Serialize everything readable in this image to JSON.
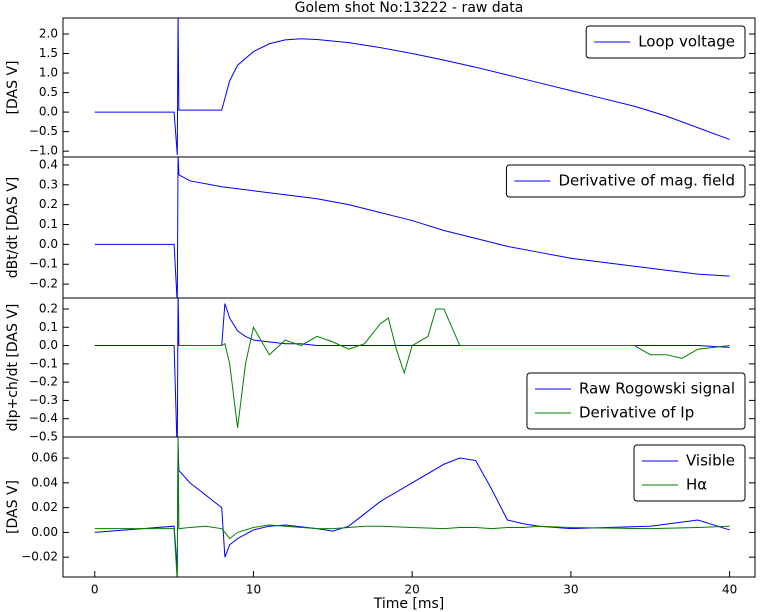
{
  "chart_data": [
    {
      "type": "line",
      "title": "Golem shot No:13222 - raw data",
      "ylabel": "[DAS V]",
      "legend": "upper right",
      "xlim": [
        -2,
        41.6
      ],
      "ylim": [
        -1.15,
        2.41
      ],
      "yticks": [
        {
          "value": 2,
          "label": "2.0"
        },
        {
          "value": 1.5,
          "label": "1.5"
        },
        {
          "value": 1,
          "label": "1.0"
        },
        {
          "value": 0.5,
          "label": "0.5"
        },
        {
          "value": 0,
          "label": "0.0"
        },
        {
          "value": -0.5,
          "label": "−0.5"
        },
        {
          "value": -1,
          "label": "−1.0"
        }
      ],
      "x": [
        0,
        5,
        5.2,
        5.25,
        5.3,
        8,
        8.5,
        9,
        10,
        11,
        12,
        13,
        14,
        16,
        18,
        20,
        22,
        24,
        26,
        28,
        30,
        32,
        34,
        36,
        38,
        40
      ],
      "series": [
        {
          "name": "Loop voltage",
          "color": "#0000ff",
          "values": [
            0,
            0,
            -1.1,
            2.5,
            0.05,
            0.05,
            0.8,
            1.2,
            1.55,
            1.75,
            1.85,
            1.88,
            1.86,
            1.78,
            1.65,
            1.5,
            1.33,
            1.15,
            0.95,
            0.75,
            0.55,
            0.35,
            0.15,
            -0.1,
            -0.4,
            -0.7
          ]
        }
      ]
    },
    {
      "type": "line",
      "ylabel": "dBt/dt [DAS V]",
      "legend": "upper right",
      "xlim": [
        -2,
        41.6
      ],
      "ylim": [
        -0.27,
        0.44
      ],
      "yticks": [
        {
          "value": 0.4,
          "label": "0.4"
        },
        {
          "value": 0.3,
          "label": "0.3"
        },
        {
          "value": 0.2,
          "label": "0.2"
        },
        {
          "value": 0.1,
          "label": "0.1"
        },
        {
          "value": 0,
          "label": "0.0"
        },
        {
          "value": -0.1,
          "label": "−0.1"
        },
        {
          "value": -0.2,
          "label": "−0.2"
        }
      ],
      "x": [
        0,
        5,
        5.2,
        5.25,
        5.3,
        6,
        8,
        10,
        12,
        14,
        16,
        18,
        20,
        22,
        24,
        26,
        28,
        30,
        32,
        34,
        36,
        38,
        40
      ],
      "series": [
        {
          "name": "Derivative of mag. field",
          "color": "#0000ff",
          "values": [
            0,
            0,
            -0.3,
            0.45,
            0.35,
            0.32,
            0.29,
            0.27,
            0.25,
            0.23,
            0.2,
            0.16,
            0.12,
            0.07,
            0.03,
            -0.01,
            -0.04,
            -0.07,
            -0.09,
            -0.11,
            -0.13,
            -0.15,
            -0.16
          ]
        }
      ]
    },
    {
      "type": "line",
      "ylabel": "dIp+ch/dt [DAS V]",
      "legend": "lower right",
      "xlim": [
        -2,
        41.6
      ],
      "ylim": [
        -0.5,
        0.26
      ],
      "yticks": [
        {
          "value": 0.2,
          "label": "0.2"
        },
        {
          "value": 0.1,
          "label": "0.1"
        },
        {
          "value": 0,
          "label": "0.0"
        },
        {
          "value": -0.1,
          "label": "−0.1"
        },
        {
          "value": -0.2,
          "label": "−0.2"
        },
        {
          "value": -0.3,
          "label": "−0.3"
        },
        {
          "value": -0.4,
          "label": "−0.4"
        },
        {
          "value": -0.5,
          "label": "−0.5"
        }
      ],
      "x": [
        0,
        5,
        5.2,
        5.25,
        5.3,
        8,
        8.2,
        8.5,
        9,
        9.5,
        10,
        11,
        12,
        13,
        14,
        15,
        16,
        17,
        18,
        18.5,
        19,
        19.5,
        20,
        21,
        21.5,
        22,
        23,
        25,
        27,
        30,
        34,
        35,
        36,
        37,
        38,
        40
      ],
      "series": [
        {
          "name": "Raw Rogowski signal",
          "color": "#0000ff",
          "values": [
            0,
            0,
            -0.6,
            0.3,
            0,
            0,
            0.23,
            0.15,
            0.08,
            0.05,
            0.03,
            0.02,
            0.01,
            0.01,
            0,
            0,
            0,
            0,
            0,
            0,
            0,
            0,
            0,
            0,
            0,
            0,
            0,
            0,
            0,
            0,
            0,
            0,
            0,
            0,
            0,
            -0.01
          ]
        },
        {
          "name": "Derivative of Ip",
          "color": "#008000",
          "values": [
            null,
            null,
            null,
            null,
            0,
            0,
            0.01,
            -0.1,
            -0.45,
            -0.1,
            0.1,
            -0.05,
            0.03,
            0,
            0.05,
            0.02,
            -0.02,
            0.01,
            0.12,
            0.15,
            -0.02,
            -0.15,
            0,
            0.05,
            0.2,
            0.2,
            0,
            0,
            0,
            0,
            0,
            -0.05,
            -0.05,
            -0.07,
            -0.02,
            0
          ]
        }
      ]
    },
    {
      "type": "line",
      "ylabel": "[DAS V]",
      "xlabel": "Time [ms]",
      "legend": "upper right",
      "xlim": [
        -2,
        41.6
      ],
      "ylim": [
        -0.036,
        0.077
      ],
      "xticks": [
        0,
        10,
        20,
        30,
        40
      ],
      "yticks": [
        {
          "value": 0.06,
          "label": "0.06"
        },
        {
          "value": 0.04,
          "label": "0.04"
        },
        {
          "value": 0.02,
          "label": "0.02"
        },
        {
          "value": 0,
          "label": "0.00"
        },
        {
          "value": -0.02,
          "label": "−0.02"
        }
      ],
      "x": [
        0,
        5,
        5.2,
        5.25,
        5.3,
        6,
        7,
        8,
        8.2,
        8.5,
        9,
        10,
        11,
        12,
        14,
        15,
        16,
        17,
        18,
        20,
        22,
        23,
        24,
        25,
        26,
        27,
        28,
        30,
        35,
        38,
        40
      ],
      "series": [
        {
          "name": "Visible",
          "color": "#0000ff",
          "values": [
            0,
            0.005,
            -0.03,
            0.07,
            0.05,
            0.04,
            0.03,
            0.02,
            -0.02,
            -0.01,
            -0.005,
            0.002,
            0.005,
            0.006,
            0.003,
            0.001,
            0.005,
            0.015,
            0.025,
            0.04,
            0.055,
            0.06,
            0.058,
            0.035,
            0.01,
            0.007,
            0.005,
            0.003,
            0.005,
            0.01,
            0.002
          ]
        },
        {
          "name": "Hα",
          "color": "#008000",
          "values": [
            0.003,
            0.003,
            -0.04,
            0.08,
            0.003,
            0.004,
            0.005,
            0.003,
            0,
            -0.005,
            0,
            0.004,
            0.006,
            0.005,
            0.003,
            0.003,
            0.004,
            0.005,
            0.005,
            0.004,
            0.003,
            0.004,
            0.004,
            0.003,
            0.004,
            0.004,
            0.005,
            0.004,
            0.003,
            0.004,
            0.005
          ]
        }
      ]
    }
  ]
}
